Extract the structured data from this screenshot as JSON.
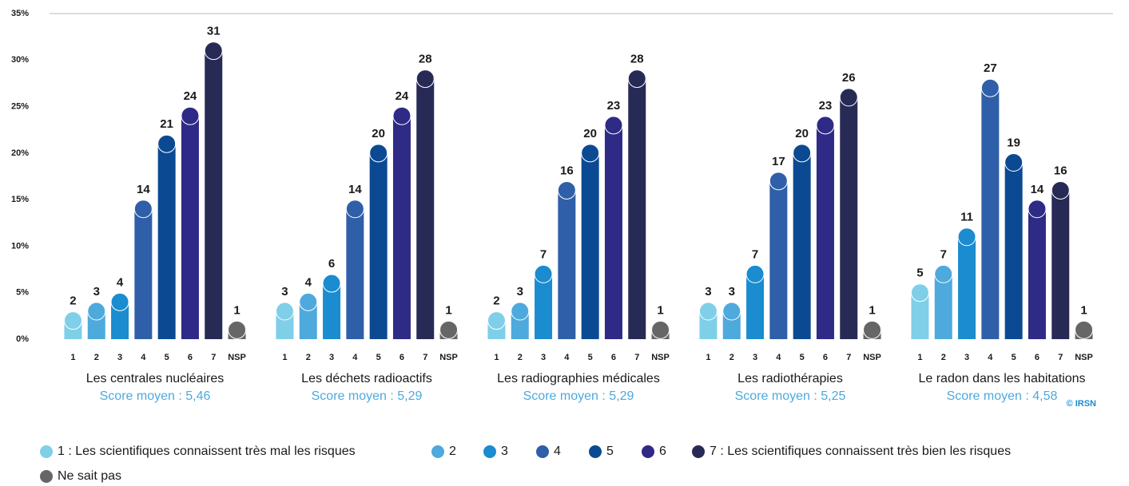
{
  "chart_data": {
    "type": "bar",
    "categories": [
      "Les centrales nucléaires",
      "Les déchets radioactifs",
      "Les radiographies médicales",
      "Les radiothérapies",
      "Le radon dans les habitations"
    ],
    "group_notes": [
      "Score moyen : 5,46",
      "Score moyen : 5,29",
      "Score moyen : 5,29",
      "Score moyen : 5,25",
      "Score moyen : 4,58"
    ],
    "sublabels": [
      "1",
      "2",
      "3",
      "4",
      "5",
      "6",
      "7",
      "NSP"
    ],
    "series": [
      {
        "name": "1 : Les scientifiques connaissent très mal les risques",
        "color": "#7fcfe9",
        "values": [
          2,
          3,
          2,
          3,
          5
        ]
      },
      {
        "name": "2",
        "color": "#4ea9dd",
        "values": [
          3,
          4,
          3,
          3,
          7
        ]
      },
      {
        "name": "3",
        "color": "#1a8ccf",
        "values": [
          4,
          6,
          7,
          7,
          11
        ]
      },
      {
        "name": "4",
        "color": "#2f5fa8",
        "values": [
          14,
          14,
          16,
          17,
          27
        ]
      },
      {
        "name": "5",
        "color": "#0b4a92",
        "values": [
          21,
          20,
          20,
          20,
          19
        ]
      },
      {
        "name": "6",
        "color": "#2e2a86",
        "values": [
          24,
          24,
          23,
          23,
          14
        ]
      },
      {
        "name": "7 : Les scientifiques connaissent très bien les risques",
        "color": "#282a56",
        "values": [
          31,
          28,
          28,
          26,
          16
        ]
      },
      {
        "name": "Ne sait pas",
        "color": "#666666",
        "values": [
          1,
          1,
          1,
          1,
          1
        ]
      }
    ],
    "ylim": [
      0,
      35
    ],
    "yticks": [
      {
        "value": 0,
        "label": "0%"
      },
      {
        "value": 5,
        "label": "5%"
      },
      {
        "value": 10,
        "label": "10%"
      },
      {
        "value": 15,
        "label": "15%"
      },
      {
        "value": 20,
        "label": "20%"
      },
      {
        "value": 25,
        "label": "25%"
      },
      {
        "value": 30,
        "label": "30%"
      },
      {
        "value": 35,
        "label": "35%"
      }
    ],
    "credit": "© IRSN"
  }
}
